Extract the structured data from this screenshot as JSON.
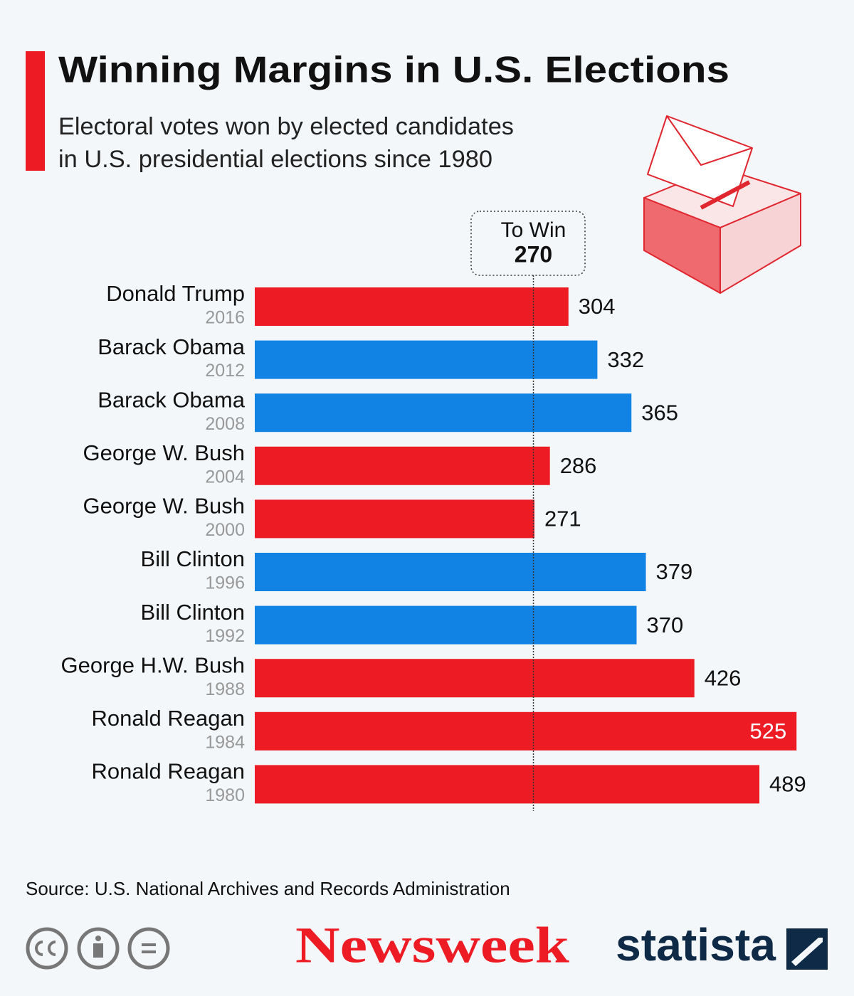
{
  "chart_data": {
    "type": "bar",
    "orientation": "horizontal",
    "title": "Winning Margins in U.S. Elections",
    "subtitle": [
      "Electoral votes won by elected candidates",
      "in U.S. presidential elections since 1980"
    ],
    "categories": [
      "Donald Trump",
      "Barack Obama",
      "Barack Obama",
      "George W. Bush",
      "George W. Bush",
      "Bill Clinton",
      "Bill Clinton",
      "George H.W. Bush",
      "Ronald Reagan",
      "Ronald Reagan"
    ],
    "years": [
      "2016",
      "2012",
      "2008",
      "2004",
      "2000",
      "1996",
      "1992",
      "1988",
      "1984",
      "1980"
    ],
    "values": [
      304,
      332,
      365,
      286,
      271,
      379,
      370,
      426,
      525,
      489
    ],
    "colors": [
      "#ed1c24",
      "#1183e4",
      "#1183e4",
      "#ed1c24",
      "#ed1c24",
      "#1183e4",
      "#1183e4",
      "#ed1c24",
      "#ed1c24",
      "#ed1c24"
    ],
    "threshold": {
      "label": "To Win",
      "value": 270
    },
    "source": "Source: U.S. National Archives and Records Administration",
    "brands": [
      "Newsweek",
      "statista"
    ]
  }
}
